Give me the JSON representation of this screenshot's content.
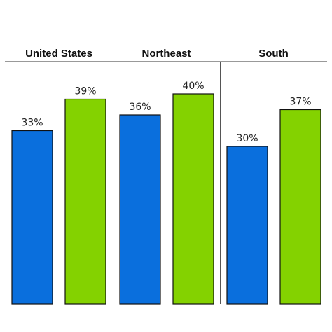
{
  "chart_data": {
    "type": "bar",
    "panels": [
      {
        "title": "United States",
        "values": [
          33,
          39
        ],
        "labels": [
          "33%",
          "39%"
        ]
      },
      {
        "title": "Northeast",
        "values": [
          36,
          40
        ],
        "labels": [
          "36%",
          "40%"
        ]
      },
      {
        "title": "South",
        "values": [
          30,
          37
        ],
        "labels": [
          "30%",
          "37%"
        ]
      }
    ],
    "series_colors": [
      "#0A6FDD",
      "#84D200"
    ],
    "ylim": [
      0,
      45
    ],
    "grid": false,
    "legend": "none"
  }
}
